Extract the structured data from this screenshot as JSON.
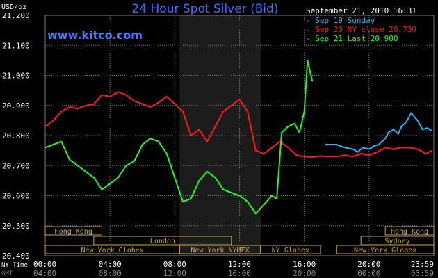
{
  "chart_data": {
    "type": "line",
    "title": "24 Hour Spot Silver (Bid)",
    "brand": "www.kitco.com",
    "date_label": "September 21, 2010 16:31",
    "yunit": "USD/oz",
    "ylim": [
      20.4,
      21.2
    ],
    "yticks": [
      "21.200",
      "21.100",
      "21.000",
      "20.900",
      "20.800",
      "20.700",
      "20.600",
      "20.500",
      "20.400"
    ],
    "xlim": [
      0,
      24
    ],
    "ny_time_label": "NY Time",
    "gmt_label": "GMT",
    "xticks_ny": [
      "00:00",
      "04:00",
      "08:00",
      "12:00",
      "16:00",
      "20:00",
      "23:59"
    ],
    "xticks_gmt": [
      "04:00",
      "08:00",
      "12:00",
      "16:00",
      "20:00",
      "00:00",
      "03:59"
    ],
    "grid": true,
    "legend_position": "top-right",
    "colors": {
      "background": "#000000",
      "grid": "#7a7a7a",
      "title": "#3f6dff",
      "brand": "#4a7cff",
      "text": "#ffffff",
      "session_box": "#c8aa50",
      "shade": "#1c1c1c"
    },
    "shaded_x": [
      8.3,
      13.3
    ],
    "series": [
      {
        "name": "Sep 19 Sunday",
        "color": "#2ab4ff",
        "x": [
          17.3,
          18.0,
          18.5,
          19.0,
          19.3,
          19.6,
          20.0,
          20.3,
          20.6,
          21.0,
          21.2,
          21.5,
          21.8,
          22.0,
          22.3,
          22.6,
          23.0,
          23.3,
          23.6,
          23.9
        ],
        "y": [
          20.77,
          20.77,
          20.76,
          20.755,
          20.745,
          20.76,
          20.755,
          20.765,
          20.77,
          20.79,
          20.81,
          20.82,
          20.805,
          20.83,
          20.845,
          20.875,
          20.85,
          20.82,
          20.825,
          20.815
        ]
      },
      {
        "name": "Sep 20 NY close 20.730",
        "color": "#ff1a1a",
        "x": [
          0.0,
          0.5,
          1.0,
          1.5,
          2.0,
          2.5,
          3.0,
          3.5,
          4.0,
          4.5,
          5.0,
          5.5,
          6.0,
          6.5,
          7.0,
          7.5,
          8.0,
          8.5,
          9.0,
          9.5,
          10.0,
          10.5,
          11.0,
          11.5,
          12.0,
          12.5,
          13.0,
          13.5,
          14.0,
          14.5,
          15.0,
          15.5,
          16.0,
          16.5,
          17.0,
          17.5,
          18.0,
          18.5,
          19.0,
          19.5,
          20.0,
          20.5,
          21.0,
          21.5,
          22.0,
          22.5,
          23.0,
          23.5,
          23.9
        ],
        "y": [
          20.83,
          20.85,
          20.88,
          20.895,
          20.89,
          20.9,
          20.905,
          20.935,
          20.93,
          20.945,
          20.935,
          20.915,
          20.905,
          20.895,
          20.91,
          20.93,
          20.905,
          20.88,
          20.8,
          20.82,
          20.78,
          20.83,
          20.88,
          20.9,
          20.92,
          20.88,
          20.75,
          20.74,
          20.76,
          20.78,
          20.76,
          20.735,
          20.73,
          20.728,
          20.732,
          20.73,
          20.73,
          20.735,
          20.73,
          20.74,
          20.735,
          20.745,
          20.76,
          20.755,
          20.76,
          20.76,
          20.755,
          20.74,
          20.75
        ]
      },
      {
        "name": "Sep 21 Last 20.980",
        "color": "#1eff1e",
        "x": [
          0.0,
          0.5,
          1.0,
          1.5,
          2.0,
          2.5,
          3.0,
          3.5,
          4.0,
          4.5,
          5.0,
          5.5,
          6.0,
          6.5,
          7.0,
          7.5,
          8.0,
          8.5,
          9.0,
          9.5,
          10.0,
          10.5,
          11.0,
          11.5,
          12.0,
          12.5,
          13.0,
          13.5,
          14.0,
          14.3,
          14.6,
          15.0,
          15.4,
          15.7,
          16.0,
          16.2,
          16.5
        ],
        "y": [
          20.76,
          20.77,
          20.78,
          20.72,
          20.7,
          20.68,
          20.66,
          20.62,
          20.64,
          20.66,
          20.7,
          20.715,
          20.77,
          20.79,
          20.78,
          20.74,
          20.66,
          20.58,
          20.59,
          20.65,
          20.68,
          20.66,
          20.62,
          20.61,
          20.6,
          20.58,
          20.54,
          20.57,
          20.6,
          20.59,
          20.81,
          20.83,
          20.84,
          20.81,
          20.88,
          21.05,
          20.98
        ]
      }
    ],
    "sessions": [
      {
        "label": "Hong Kong",
        "row": 0,
        "x0": 0.0,
        "x1": 3.5
      },
      {
        "label": "Hong Kong",
        "row": 0,
        "x0": 21.0,
        "x1": 24.0
      },
      {
        "label": "London",
        "row": 1,
        "x0": 3.0,
        "x1": 11.5
      },
      {
        "label": "Sydney",
        "row": 1,
        "x0": 19.5,
        "x1": 24.0
      },
      {
        "label": "New York Globex",
        "row": 2,
        "x0": 0.0,
        "x1": 8.3
      },
      {
        "label": "New York NYMEX",
        "row": 2,
        "x0": 8.3,
        "x1": 13.3
      },
      {
        "label": "NY Globex",
        "row": 2,
        "x0": 13.3,
        "x1": 17.0
      },
      {
        "label": "New York Globex",
        "row": 2,
        "x0": 18.0,
        "x1": 24.0
      }
    ]
  }
}
